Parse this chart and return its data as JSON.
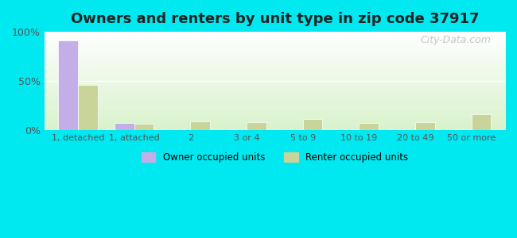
{
  "title": "Owners and renters by unit type in zip code 37917",
  "categories": [
    "1, detached",
    "1, attached",
    "2",
    "3 or 4",
    "5 to 9",
    "10 to 19",
    "20 to 49",
    "50 or more"
  ],
  "owner_values": [
    91,
    7,
    1,
    0.5,
    0.5,
    0.5,
    0.5,
    0.5
  ],
  "renter_values": [
    46,
    6,
    9,
    8,
    11,
    7,
    8,
    16
  ],
  "owner_color": "#c4aee8",
  "renter_color": "#c8d49a",
  "background_outer": "#00e8f0",
  "ylim": [
    0,
    100
  ],
  "yticks": [
    0,
    50,
    100
  ],
  "ytick_labels": [
    "0%",
    "50%",
    "100%"
  ],
  "owner_label": "Owner occupied units",
  "renter_label": "Renter occupied units",
  "bar_width": 0.35,
  "title_fontsize": 13,
  "watermark": "City-Data.com"
}
